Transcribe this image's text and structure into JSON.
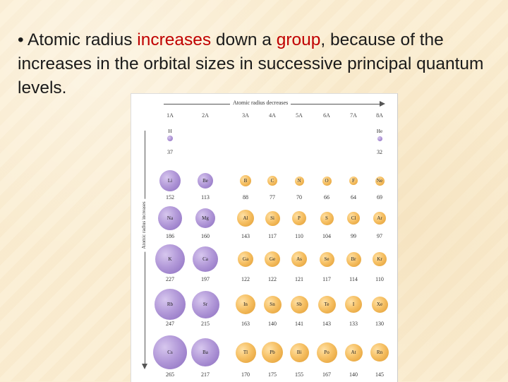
{
  "slide": {
    "bullet": "•",
    "text_1": "Atomic radius ",
    "text_red_1": "increases",
    "text_2": " down a ",
    "text_red_2": "group",
    "text_3": ", because of the increases in the orbital sizes in successive principal quantum levels."
  },
  "figure": {
    "top_label": "Atomic radius decreases",
    "side_label": "Atomic radius increases",
    "groups": [
      "1A",
      "2A",
      "3A",
      "4A",
      "5A",
      "6A",
      "7A",
      "8A"
    ],
    "colors": {
      "s_block": "#b39ad9",
      "p_block": "#f6c064"
    },
    "rows": [
      [
        {
          "symbol": "H",
          "radius": "37",
          "col": 0,
          "kind": "purple",
          "size": 8
        },
        {
          "symbol": "He",
          "radius": "32",
          "col": 7,
          "kind": "purple",
          "size": 7
        }
      ],
      [
        {
          "symbol": "Li",
          "radius": "152",
          "col": 0,
          "kind": "purple",
          "size": 30
        },
        {
          "symbol": "Be",
          "radius": "113",
          "col": 1,
          "kind": "purple",
          "size": 22
        },
        {
          "symbol": "B",
          "radius": "88",
          "col": 2,
          "kind": "orange",
          "size": 16
        },
        {
          "symbol": "C",
          "radius": "77",
          "col": 3,
          "kind": "orange",
          "size": 14
        },
        {
          "symbol": "N",
          "radius": "70",
          "col": 4,
          "kind": "orange",
          "size": 13
        },
        {
          "symbol": "O",
          "radius": "66",
          "col": 5,
          "kind": "orange",
          "size": 13
        },
        {
          "symbol": "F",
          "radius": "64",
          "col": 6,
          "kind": "orange",
          "size": 12
        },
        {
          "symbol": "Ne",
          "radius": "69",
          "col": 7,
          "kind": "orange",
          "size": 13
        }
      ],
      [
        {
          "symbol": "Na",
          "radius": "186",
          "col": 0,
          "kind": "purple",
          "size": 34
        },
        {
          "symbol": "Mg",
          "radius": "160",
          "col": 1,
          "kind": "purple",
          "size": 28
        },
        {
          "symbol": "Al",
          "radius": "143",
          "col": 2,
          "kind": "orange",
          "size": 24
        },
        {
          "symbol": "Si",
          "radius": "117",
          "col": 3,
          "kind": "orange",
          "size": 21
        },
        {
          "symbol": "P",
          "radius": "110",
          "col": 4,
          "kind": "orange",
          "size": 20
        },
        {
          "symbol": "S",
          "radius": "104",
          "col": 5,
          "kind": "orange",
          "size": 19
        },
        {
          "symbol": "Cl",
          "radius": "99",
          "col": 6,
          "kind": "orange",
          "size": 18
        },
        {
          "symbol": "Ar",
          "radius": "97",
          "col": 7,
          "kind": "orange",
          "size": 18
        }
      ],
      [
        {
          "symbol": "K",
          "radius": "227",
          "col": 0,
          "kind": "purple",
          "size": 42
        },
        {
          "symbol": "Ca",
          "radius": "197",
          "col": 1,
          "kind": "purple",
          "size": 36
        },
        {
          "symbol": "Ga",
          "radius": "122",
          "col": 2,
          "kind": "orange",
          "size": 22
        },
        {
          "symbol": "Ge",
          "radius": "122",
          "col": 3,
          "kind": "orange",
          "size": 22
        },
        {
          "symbol": "As",
          "radius": "121",
          "col": 4,
          "kind": "orange",
          "size": 22
        },
        {
          "symbol": "Se",
          "radius": "117",
          "col": 5,
          "kind": "orange",
          "size": 21
        },
        {
          "symbol": "Br",
          "radius": "114",
          "col": 6,
          "kind": "orange",
          "size": 21
        },
        {
          "symbol": "Kr",
          "radius": "110",
          "col": 7,
          "kind": "orange",
          "size": 20
        }
      ],
      [
        {
          "symbol": "Rb",
          "radius": "247",
          "col": 0,
          "kind": "purple",
          "size": 44
        },
        {
          "symbol": "Sr",
          "radius": "215",
          "col": 1,
          "kind": "purple",
          "size": 39
        },
        {
          "symbol": "In",
          "radius": "163",
          "col": 2,
          "kind": "orange",
          "size": 28
        },
        {
          "symbol": "Sn",
          "radius": "140",
          "col": 3,
          "kind": "orange",
          "size": 25
        },
        {
          "symbol": "Sb",
          "radius": "141",
          "col": 4,
          "kind": "orange",
          "size": 25
        },
        {
          "symbol": "Te",
          "radius": "143",
          "col": 5,
          "kind": "orange",
          "size": 25
        },
        {
          "symbol": "I",
          "radius": "133",
          "col": 6,
          "kind": "orange",
          "size": 24
        },
        {
          "symbol": "Xe",
          "radius": "130",
          "col": 7,
          "kind": "orange",
          "size": 23
        }
      ],
      [
        {
          "symbol": "Cs",
          "radius": "265",
          "col": 0,
          "kind": "purple",
          "size": 48
        },
        {
          "symbol": "Ba",
          "radius": "217",
          "col": 1,
          "kind": "purple",
          "size": 40
        },
        {
          "symbol": "Tl",
          "radius": "170",
          "col": 2,
          "kind": "orange",
          "size": 29
        },
        {
          "symbol": "Pb",
          "radius": "175",
          "col": 3,
          "kind": "orange",
          "size": 30
        },
        {
          "symbol": "Bi",
          "radius": "155",
          "col": 4,
          "kind": "orange",
          "size": 27
        },
        {
          "symbol": "Po",
          "radius": "167",
          "col": 5,
          "kind": "orange",
          "size": 29
        },
        {
          "symbol": "At",
          "radius": "140",
          "col": 6,
          "kind": "orange",
          "size": 25
        },
        {
          "symbol": "Rn",
          "radius": "145",
          "col": 7,
          "kind": "orange",
          "size": 26
        }
      ]
    ]
  }
}
